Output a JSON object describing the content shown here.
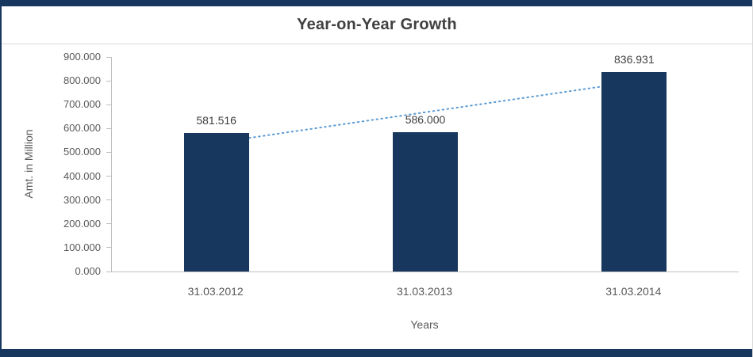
{
  "page": {
    "accent_color": "#17375E",
    "background": "#ffffff"
  },
  "chart_data": {
    "type": "bar",
    "title": "Year-on-Year Growth",
    "categories": [
      "31.03.2012",
      "31.03.2013",
      "31.03.2014"
    ],
    "values": [
      581.516,
      586.0,
      836.931
    ],
    "data_labels": [
      "581.516",
      "586.000",
      "836.931"
    ],
    "xlabel": "Years",
    "ylabel": "Amt. in Million",
    "ylim": [
      0,
      900
    ],
    "ytick_step": 100,
    "ytick_labels": [
      "0.000",
      "100.000",
      "200.000",
      "300.000",
      "400.000",
      "500.000",
      "600.000",
      "700.000",
      "800.000",
      "900.000"
    ],
    "grid": false,
    "legend": "none",
    "bar_color": "#17375E",
    "axis_color": "#bfbfbf",
    "label_color": "#595959",
    "trendline": {
      "type": "linear",
      "style": "dotted",
      "color": "#5B9BD5",
      "start_value": 540.44,
      "end_value": 795.86
    }
  }
}
